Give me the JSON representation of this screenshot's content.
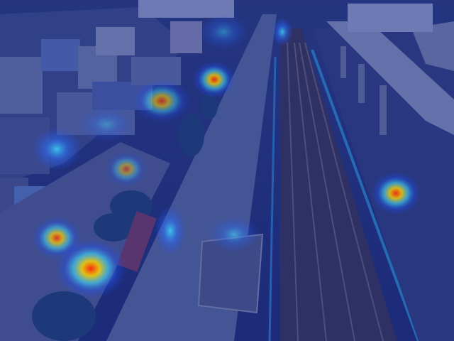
{
  "scene": {
    "description_kind": "aerial-photo-with-attention-heatmap",
    "colors": {
      "overlay_tint": "#1e2d8c",
      "road": "#5a6a9a",
      "rail_bed": "#3a3450",
      "rail_line": "#6a6070",
      "buildings": "#4a5a8a",
      "building_light": "#7a8ab0",
      "trees": "#1e4070",
      "overpass": "#8a94b8",
      "heat_hot": "#ff2a00",
      "heat_warm": "#ffd400",
      "heat_mid": "#40e0ff",
      "heat_cool": "#2050ff"
    },
    "heat_intensity": [
      {
        "id": "top-center",
        "level": 0.55
      },
      {
        "id": "upper-center",
        "level": 0.9
      },
      {
        "id": "upper-left",
        "level": 0.7
      },
      {
        "id": "left-cluster",
        "level": 0.5
      },
      {
        "id": "mid-left",
        "level": 0.55
      },
      {
        "id": "lower-left",
        "level": 0.85
      },
      {
        "id": "bottom-left",
        "level": 1.0
      },
      {
        "id": "right-pillar",
        "level": 0.95
      }
    ]
  }
}
